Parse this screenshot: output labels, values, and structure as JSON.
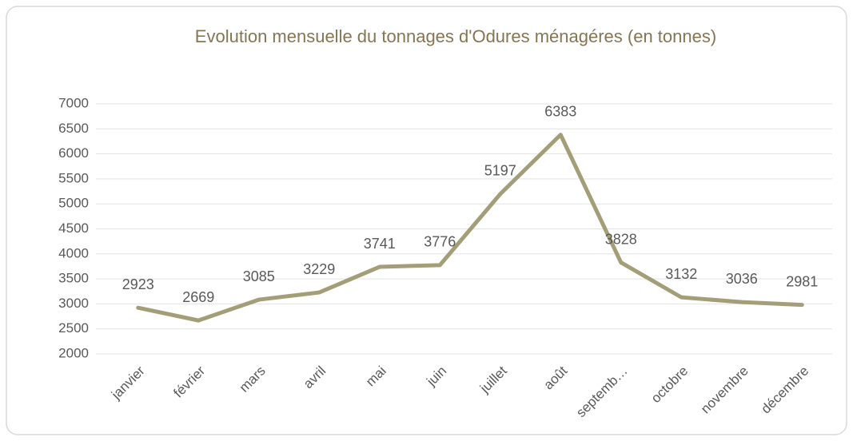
{
  "chart_data": {
    "type": "line",
    "title": "Evolution mensuelle du tonnages d'Odures ménagéres (en tonnes)",
    "categories": [
      "janvier",
      "février",
      "mars",
      "avril",
      "mai",
      "juin",
      "juillet",
      "août",
      "septemb…",
      "octobre",
      "novembre",
      "décembre"
    ],
    "values": [
      2923,
      2669,
      3085,
      3229,
      3741,
      3776,
      5197,
      6383,
      3828,
      3132,
      3036,
      2981
    ],
    "color": "#a49e78",
    "ylim": [
      2000,
      7000
    ],
    "yticks": [
      2000,
      2500,
      3000,
      3500,
      4000,
      4500,
      5000,
      5500,
      6000,
      6500,
      7000
    ],
    "grid": true
  }
}
